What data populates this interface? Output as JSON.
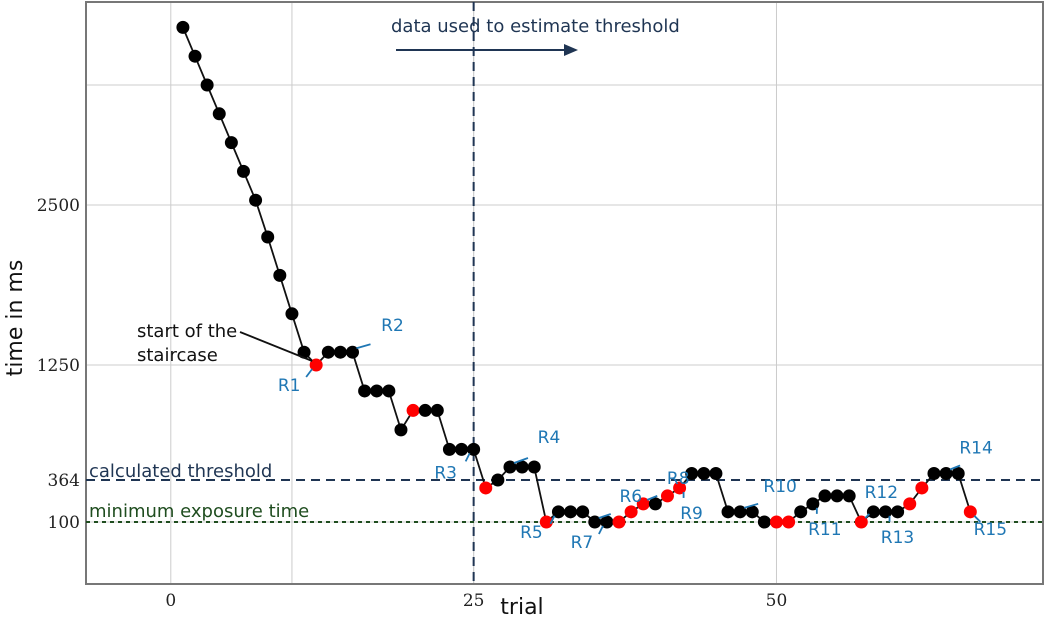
{
  "chart_data": {
    "type": "line",
    "xlabel": "trial",
    "ylabel": "time in ms",
    "x_ticks": [
      "0",
      "25",
      "50"
    ],
    "y_ticks": [
      "100",
      "364",
      "1250",
      "2500"
    ],
    "xlim": [
      -7,
      72
    ],
    "ylim": [
      -200,
      4500
    ],
    "colors": {
      "line": "#111111",
      "point": "#000000",
      "reversal": "#ff0000",
      "label": "#1f77b4",
      "threshold": "#1f3553",
      "minimum": "#1f4d1f"
    },
    "series": [
      {
        "x": [
          1,
          2,
          3,
          4,
          5,
          6,
          7,
          8,
          9,
          10,
          11,
          12,
          13,
          14,
          15,
          16,
          17,
          18,
          19,
          20,
          21,
          22,
          23,
          24,
          25,
          26,
          27,
          28,
          29,
          30,
          31,
          32,
          33,
          34,
          35,
          36,
          37,
          38,
          39,
          40,
          41,
          42,
          43,
          44,
          45,
          46,
          47,
          48,
          49,
          50,
          51,
          52,
          53,
          54,
          55,
          56,
          57,
          58,
          59,
          60,
          61,
          62,
          63,
          64,
          65,
          66
        ],
        "y": [
          4350,
          4050,
          3750,
          3450,
          3150,
          2850,
          2550,
          2250,
          1950,
          1650,
          1350,
          1250,
          1350,
          1350,
          1350,
          1050,
          1050,
          1050,
          750,
          900,
          900,
          900,
          600,
          600,
          600,
          314,
          364,
          464,
          464,
          464,
          100,
          164,
          164,
          164,
          100,
          100,
          100,
          164,
          214,
          214,
          264,
          314,
          414,
          414,
          414,
          164,
          164,
          164,
          100,
          100,
          100,
          164,
          214,
          264,
          264,
          264,
          100,
          164,
          164,
          164,
          214,
          314,
          414,
          414,
          414,
          164
        ],
        "reversal": [
          false,
          false,
          false,
          false,
          false,
          false,
          false,
          false,
          false,
          false,
          false,
          true,
          false,
          false,
          false,
          false,
          false,
          false,
          false,
          true,
          false,
          false,
          false,
          false,
          false,
          true,
          false,
          false,
          false,
          false,
          true,
          false,
          false,
          false,
          false,
          false,
          true,
          true,
          true,
          false,
          true,
          true,
          false,
          false,
          false,
          false,
          false,
          false,
          false,
          true,
          true,
          false,
          false,
          false,
          false,
          false,
          true,
          false,
          false,
          false,
          true,
          true,
          false,
          false,
          false,
          true
        ]
      }
    ],
    "threshold": {
      "value": 364,
      "label": "calculated threshold"
    },
    "minimum": {
      "value": 100,
      "label": "minimum exposure time"
    },
    "estimation_start_x": 25,
    "estimation_label": "data used to estimate threshold",
    "start_annotation": [
      "start of the",
      "staircase"
    ],
    "reversals": [
      {
        "label": "R1",
        "x": 12
      },
      {
        "label": "R2",
        "x": 15
      },
      {
        "label": "R3",
        "x": 25
      },
      {
        "label": "R4",
        "x": 28
      },
      {
        "label": "R5",
        "x": 32
      },
      {
        "label": "R6",
        "x": 35
      },
      {
        "label": "R7",
        "x": 36
      },
      {
        "label": "R8",
        "x": 39
      },
      {
        "label": "R9",
        "x": 42
      },
      {
        "label": "R10",
        "x": 47
      },
      {
        "label": "R11",
        "x": 53
      },
      {
        "label": "R12",
        "x": 57
      },
      {
        "label": "R13",
        "x": 59
      },
      {
        "label": "R14",
        "x": 64
      },
      {
        "label": "R15",
        "x": 66
      }
    ]
  }
}
